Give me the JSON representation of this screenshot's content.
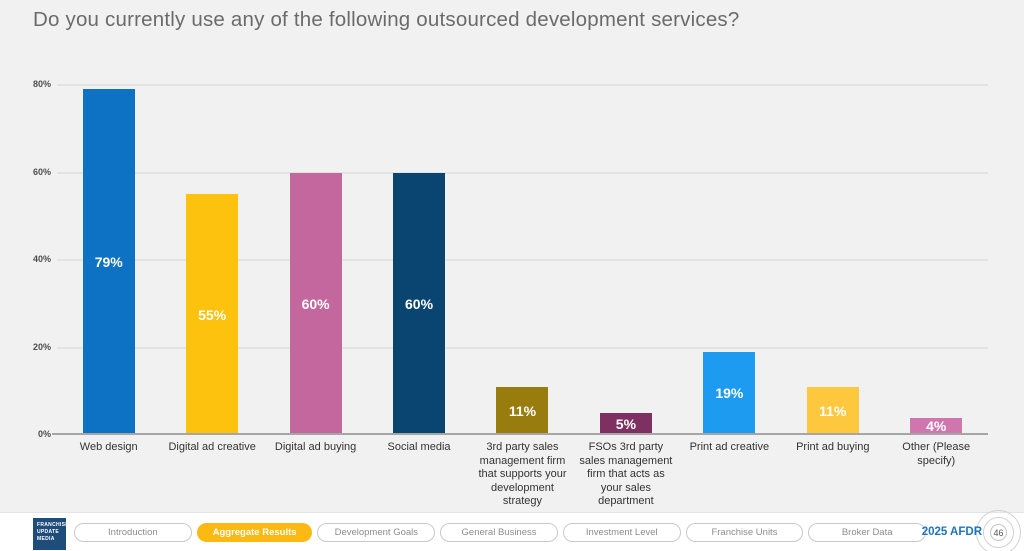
{
  "slide": {
    "title": "Do you currently use any of the following outsourced development services?",
    "background_color": "#f1f1f2"
  },
  "chart_data": {
    "type": "bar",
    "title": "Do you currently use any of the following outsourced development services?",
    "categories": [
      "Web design",
      "Digital ad creative",
      "Digital ad buying",
      "Social media",
      "3rd party sales management firm that supports your development strategy",
      "FSOs 3rd party sales management firm that acts as your sales department",
      "Print ad creative",
      "Print ad buying",
      "Other (Please specify)"
    ],
    "values": [
      79,
      55,
      60,
      60,
      11,
      5,
      19,
      11,
      4
    ],
    "value_labels": [
      "79%",
      "55%",
      "60%",
      "60%",
      "11%",
      "5%",
      "19%",
      "11%",
      "4%"
    ],
    "bar_colors": [
      "#0d72c4",
      "#fcc20e",
      "#c4679f",
      "#0a4470",
      "#997c0e",
      "#7e3062",
      "#1d9bf1",
      "#fdc83e",
      "#cf76ae"
    ],
    "xlabel": "",
    "ylabel": "",
    "ylim": [
      0,
      80
    ],
    "yticks": [
      "0%",
      "20%",
      "40%",
      "60%",
      "80%"
    ],
    "grid": true,
    "legend": false
  },
  "footer": {
    "logo_lines": [
      "FRANCHISE",
      "UPDATE",
      "MEDIA"
    ],
    "tabs": [
      {
        "label": "Introduction",
        "active": false
      },
      {
        "label": "Aggregate Results",
        "active": true
      },
      {
        "label": "Development Goals",
        "active": false
      },
      {
        "label": "General Business",
        "active": false
      },
      {
        "label": "Investment Level",
        "active": false
      },
      {
        "label": "Franchise Units",
        "active": false
      },
      {
        "label": "Broker Data",
        "active": false
      }
    ],
    "active_tab_color": "#fcb813",
    "brand": "2025 AFDR",
    "brand_color": "#1b75bc",
    "page_number": "46"
  }
}
